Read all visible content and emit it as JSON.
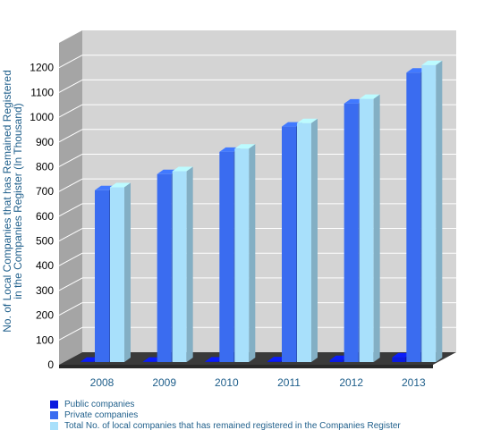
{
  "chart_data": {
    "type": "bar",
    "categories": [
      "2008",
      "2009",
      "2010",
      "2011",
      "2012",
      "2013"
    ],
    "series": [
      {
        "name": "Public companies",
        "values": [
          12,
          12,
          13,
          14,
          19,
          30
        ],
        "color": "#0a1adf"
      },
      {
        "name": "Private companies",
        "values": [
          705,
          770,
          860,
          962,
          1055,
          1180
        ],
        "color": "#3a6cf0"
      },
      {
        "name": "Total No. of local companies that has remained registered in the Companies Register",
        "values": [
          717,
          782,
          873,
          976,
          1074,
          1210
        ],
        "color": "#a8e0fb"
      }
    ],
    "title": "",
    "xlabel": "",
    "ylabel": "No. of Local Companies that has Remained Registered in the Companies Register (In Thousand)",
    "ylabel_lines": [
      "No. of Local Companies that has Remained Registered",
      "in the Companies Register (In Thousand)"
    ],
    "ylim": [
      0,
      1300
    ],
    "yticks": [
      0,
      100,
      200,
      300,
      400,
      500,
      600,
      700,
      800,
      900,
      1000,
      1100,
      1200
    ],
    "grid": true,
    "legend_position": "bottom-left",
    "style": "3d",
    "label_color": "#1f5f8b",
    "wall_color": "#d4d4d4",
    "floor_color": "#3a3a3a"
  }
}
